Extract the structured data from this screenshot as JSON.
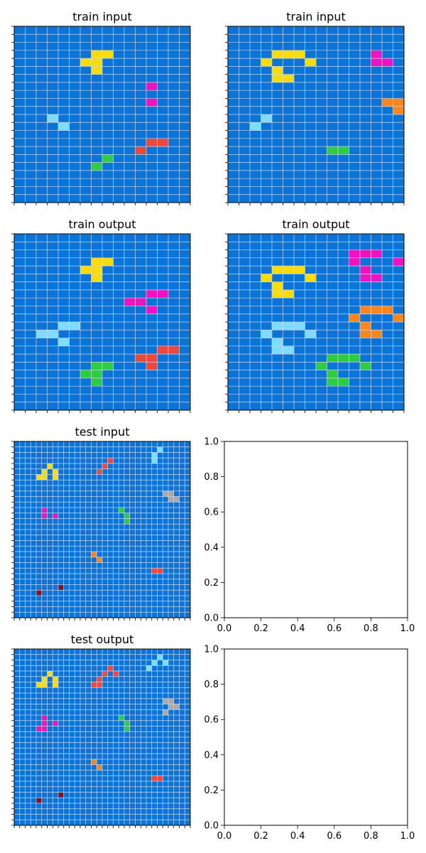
{
  "colors": {
    "background": "#0b74d6",
    "gridline": "#c7d7ea",
    "frame": "#000000",
    "palette": {
      "1": "#0b74d6",
      "2": "#f0473b",
      "3": "#2ecc40",
      "4": "#ffdc00",
      "5": "#aaaaaa",
      "6": "#f012be",
      "7": "#ff851b",
      "8": "#7fdbff",
      "9": "#870c25"
    }
  },
  "chart_data": [
    {
      "type": "heatmap",
      "title": "train input",
      "rows": [
        "1111111111111111",
        "1111111111111111",
        "1111111111111111",
        "1111111441111111",
        "1111114411111111",
        "1111111411111111",
        "1111111111111111",
        "1111111111116111",
        "1111111111111111",
        "1111111111116111",
        "1111111111111111",
        "1118111111111111",
        "1111811111111111",
        "1111111111111111",
        "1111111111112211",
        "1111111111121111",
        "1111111131111111",
        "1111111311111111",
        "1111111111111111",
        "1111111111111111",
        "1111111111111111",
        "1111111111111111"
      ]
    },
    {
      "type": "heatmap",
      "title": "train input",
      "rows": [
        "1111111111111111",
        "1111111111111111",
        "1111111111111111",
        "1111444111111611",
        "1114111411111661",
        "1111411111111111",
        "1111441111111111",
        "1111111111111111",
        "1111111111111111",
        "1111111111111177",
        "1111111111111117",
        "1118111111111111",
        "1181111111111111",
        "1111111111111111",
        "1111111111111111",
        "1111111113311111",
        "1111111111111111",
        "1111111111111111",
        "1111111111111111",
        "1111111111111111",
        "1111111111111111",
        "1111111111111111"
      ]
    },
    {
      "type": "heatmap",
      "title": "train output",
      "rows": [
        "1111111111111111",
        "1111111111111111",
        "1111111111111111",
        "1111111441111111",
        "1111114411111111",
        "1111111411111111",
        "1111111111111111",
        "1111111111116611",
        "1111111111661111",
        "1111111111116111",
        "1111111111111111",
        "1111881111111111",
        "1188111111111111",
        "1111811111111111",
        "1111111111111221",
        "1111111111122111",
        "1111111331112111",
        "1111113311111111",
        "1111111311111111",
        "1111111111111111",
        "1111111111111111",
        "1111111111111111"
      ]
    },
    {
      "type": "heatmap",
      "title": "train output",
      "rows": [
        "1111111111111111",
        "1111111111111111",
        "1111111111166611",
        "1111111111161116",
        "1111444111116111",
        "1114111411116611",
        "1111411111111111",
        "1111441111111111",
        "1111111111111111",
        "1111111111117771",
        "1111111111171117",
        "1111888111117111",
        "1118111811117711",
        "1111811111111111",
        "1111881111111111",
        "1111111113331111",
        "1111111131113111",
        "1111111113111111",
        "1111111113311111",
        "1111111111111111",
        "1111111111111111",
        "1111111111111111"
      ]
    },
    {
      "type": "heatmap",
      "title": "test input",
      "rows": [
        "11111111111111111111111111111111",
        "11111111111111111111111111811111",
        "11111111111111111111111118111111",
        "11111111111111111211111118111111",
        "11111141111111112111111111111111",
        "11111414111111121111111111111111",
        "11114414111111111111111111111111",
        "11111111111111111111111111111111",
        "11111111111111111111111111111111",
        "11111111111111111111111111155111",
        "11111111111111111111111111115511",
        "11111111111111111111111111111111",
        "11111611111111111113111111111111",
        "11111616111111111111311111111111",
        "11111111111111111111311111111111",
        "11111111111111111111111111111111",
        "11111111111111111111111111111111",
        "11111111111111111111111111111111",
        "11111111111111111111111111111111",
        "11111111111111111111111111111111",
        "11111111111111711111111111111111",
        "11111111111111171111111111111111",
        "11111111111111111111111111111111",
        "11111111111111111111111112211111",
        "11111111111111111111111111111111",
        "11111111111111111111111111111111",
        "11111111911111111111111111111111",
        "11119111111111111111111111111111",
        "11111111111111111111111111111111",
        "11111111111111111111111111111111",
        "11111111111111111111111111111111",
        "11111111111111111111111111111111"
      ]
    },
    {
      "type": "heatmap",
      "title": "test output",
      "rows": [
        "11111111111111111111111111111111",
        "11111111111111111111111111811111",
        "11111111111111111111111118181111",
        "11111111111111111211111181111111",
        "11111141111111112121111111111111",
        "11111414111111121111111111111111",
        "11114414111111221111111111111111",
        "11111111111111111111111111111111",
        "11111111111111111111111111111111",
        "11111111111111111111111111155111",
        "11111111111111111111111111115511",
        "11111111111111111111111111151111",
        "11111611111111111113111111111111",
        "11111616111111111111311111111111",
        "11116611111111111111311111111111",
        "11111111111111111111111111111111",
        "11111111111111111111111111111111",
        "11111111111111111111111111111111",
        "11111111111111111111111111111111",
        "11111111111111111111111111111111",
        "11111111111111711111111111111111",
        "11111111111111171111111111111111",
        "11111111111111111111111111111111",
        "11111111111111111111111112211111",
        "11111111111111111111111111111111",
        "11111111111111111111111111111111",
        "11111111911111111111111111111111",
        "11119111111111111111111111111111",
        "11111111111111111111111111111111",
        "11111111111111111111111111111111",
        "11111111111111111111111111111111",
        "11111111111111111111111111111111"
      ]
    }
  ],
  "empty_axes": [
    {
      "xlim": [
        0,
        1
      ],
      "ylim": [
        0,
        1
      ],
      "xticks": [
        "0.0",
        "0.2",
        "0.4",
        "0.6",
        "0.8",
        "1.0"
      ],
      "yticks": [
        "0.0",
        "0.2",
        "0.4",
        "0.6",
        "0.8",
        "1.0"
      ]
    },
    {
      "xlim": [
        0,
        1
      ],
      "ylim": [
        0,
        1
      ],
      "xticks": [
        "0.0",
        "0.2",
        "0.4",
        "0.6",
        "0.8",
        "1.0"
      ],
      "yticks": [
        "0.0",
        "0.2",
        "0.4",
        "0.6",
        "0.8",
        "1.0"
      ]
    }
  ]
}
